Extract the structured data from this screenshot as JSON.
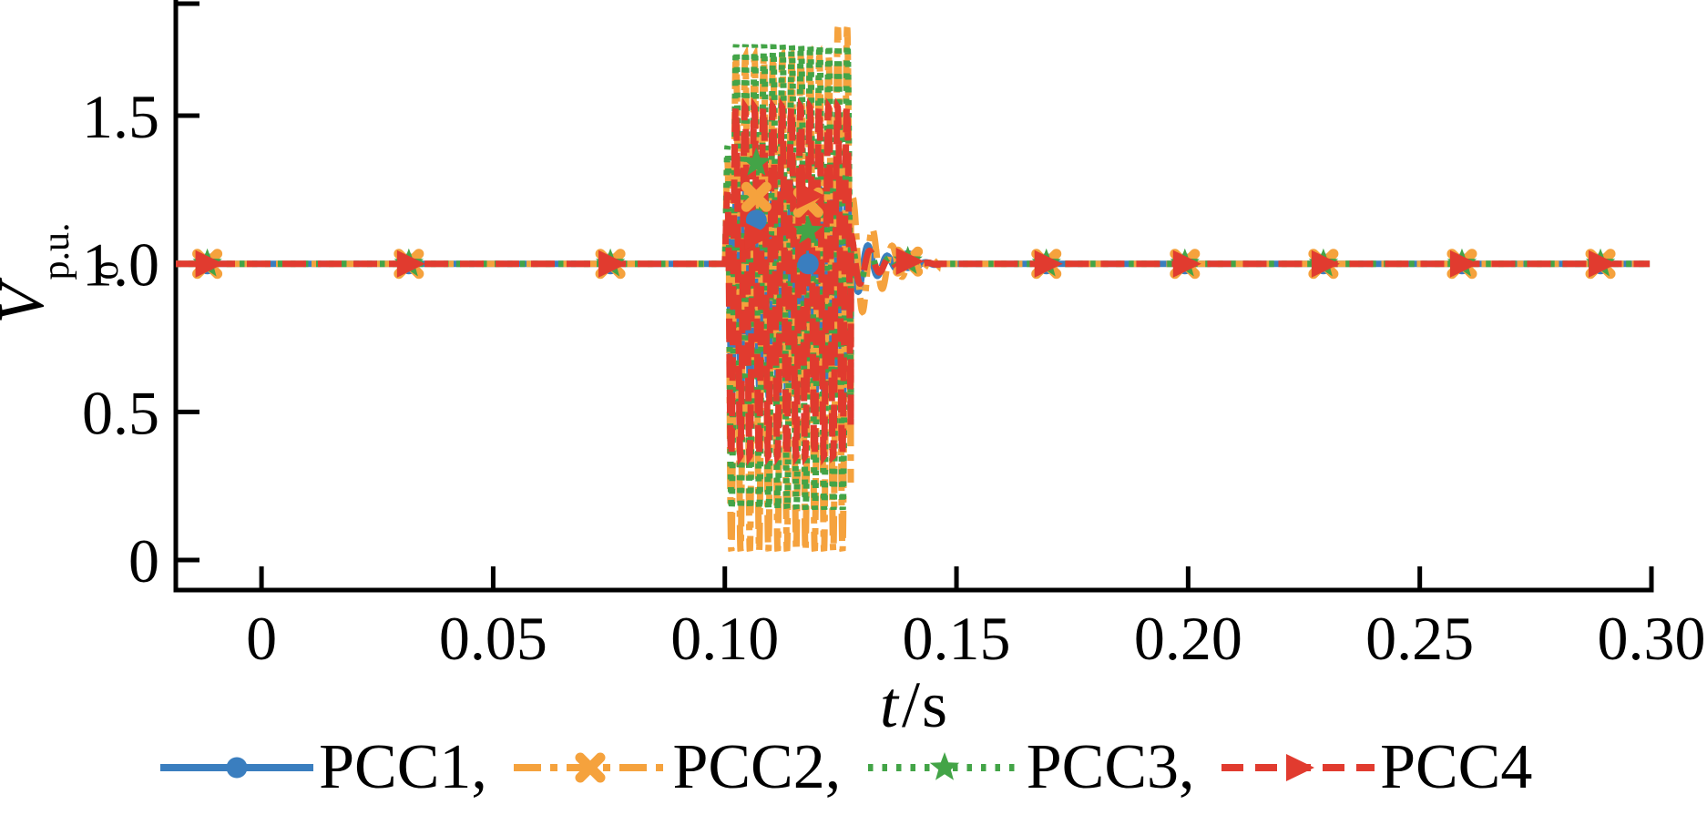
{
  "figure": {
    "background": "#ffffff",
    "axis_color": "#000000",
    "ylabel": {
      "base": "V",
      "sub": "o",
      "sup": "p.u."
    },
    "xlabel": {
      "var": "t",
      "sep": "/",
      "unit": "s"
    }
  },
  "chart_data": {
    "type": "line",
    "title": "",
    "xlabel": "t/s",
    "ylabel": "Vo^p.u.",
    "xlim": [
      -0.0185,
      0.3
    ],
    "ylim": [
      0,
      1.88
    ],
    "grid": false,
    "legend_position": "below",
    "x_ticks": [
      {
        "v": 0.0,
        "label": "0"
      },
      {
        "v": 0.05,
        "label": "0.05"
      },
      {
        "v": 0.1,
        "label": "0.10"
      },
      {
        "v": 0.15,
        "label": "0.15"
      },
      {
        "v": 0.2,
        "label": "0.20"
      },
      {
        "v": 0.25,
        "label": "0.25"
      },
      {
        "v": 0.3,
        "label": "0.30"
      }
    ],
    "y_ticks": [
      {
        "v": 0.0,
        "label": "0"
      },
      {
        "v": 0.5,
        "label": "0.5"
      },
      {
        "v": 1.0,
        "label": "1.0"
      },
      {
        "v": 1.5,
        "label": "1.5"
      }
    ],
    "steady_state_value": 1.0,
    "event": {
      "description": "high-frequency voltage oscillation burst followed by damped ringing back to 1.0 p.u.",
      "start_s": 0.1,
      "end_s": 0.1272,
      "ring_end_s": 0.146,
      "oscillation_hz": 500
    },
    "marker_times_s": [
      -0.0117,
      0.0318,
      0.0753,
      0.1068,
      0.118,
      0.1395,
      0.1694,
      0.1993,
      0.2292,
      0.2591,
      0.289
    ],
    "series": [
      {
        "name": "PCC1",
        "legend_label": "PCC1,",
        "color": "#3a7ebf",
        "linestyle": "solid",
        "dash": "",
        "legend_dash": "",
        "marker": "circle",
        "peak_high": 1.25,
        "peak_low": 0.55,
        "amp_up": 0.25,
        "amp_dn": 0.45,
        "phase": 0.0,
        "boost_end": 1,
        "ring_amp": 0.13,
        "ring_hz": 240,
        "ring_tau": 0.005,
        "ring_phase": 2.2
      },
      {
        "name": "PCC2",
        "legend_label": "PCC2,",
        "color": "#f5a23d",
        "linestyle": "dash-dot",
        "dash": "30 9 7 9",
        "legend_dash": "30 10 8 10",
        "marker": "x",
        "peak_high": 1.8,
        "peak_low": 0.03,
        "amp_up": 0.7,
        "amp_dn": 0.97,
        "phase": 0.3,
        "boost_end": 1.14,
        "ring_amp": 0.24,
        "ring_hz": 235,
        "ring_tau": 0.0065,
        "ring_phase": 0.9
      },
      {
        "name": "PCC3",
        "legend_label": "PCC3,",
        "color": "#43a447",
        "linestyle": "dotted",
        "dash": "5.5 8.5",
        "legend_dash": "5.5 10",
        "marker": "star",
        "peak_high": 1.74,
        "peak_low": 0.17,
        "amp_up": 0.74,
        "amp_dn": 0.83,
        "phase": 0.15,
        "boost_end": 1,
        "ring_amp": 0.1,
        "ring_hz": 240,
        "ring_tau": 0.005,
        "ring_phase": 1.6
      },
      {
        "name": "PCC4",
        "legend_label": "PCC4",
        "color": "#e13b2f",
        "linestyle": "dashed",
        "dash": "26 13",
        "legend_dash": "24 13",
        "marker": "triangle-right",
        "peak_high": 1.53,
        "peak_low": 0.35,
        "amp_up": 0.53,
        "amp_dn": 0.65,
        "phase": 0.45,
        "boost_end": 1,
        "ring_amp": 0.1,
        "ring_hz": 240,
        "ring_tau": 0.005,
        "ring_phase": 1.6
      }
    ]
  }
}
